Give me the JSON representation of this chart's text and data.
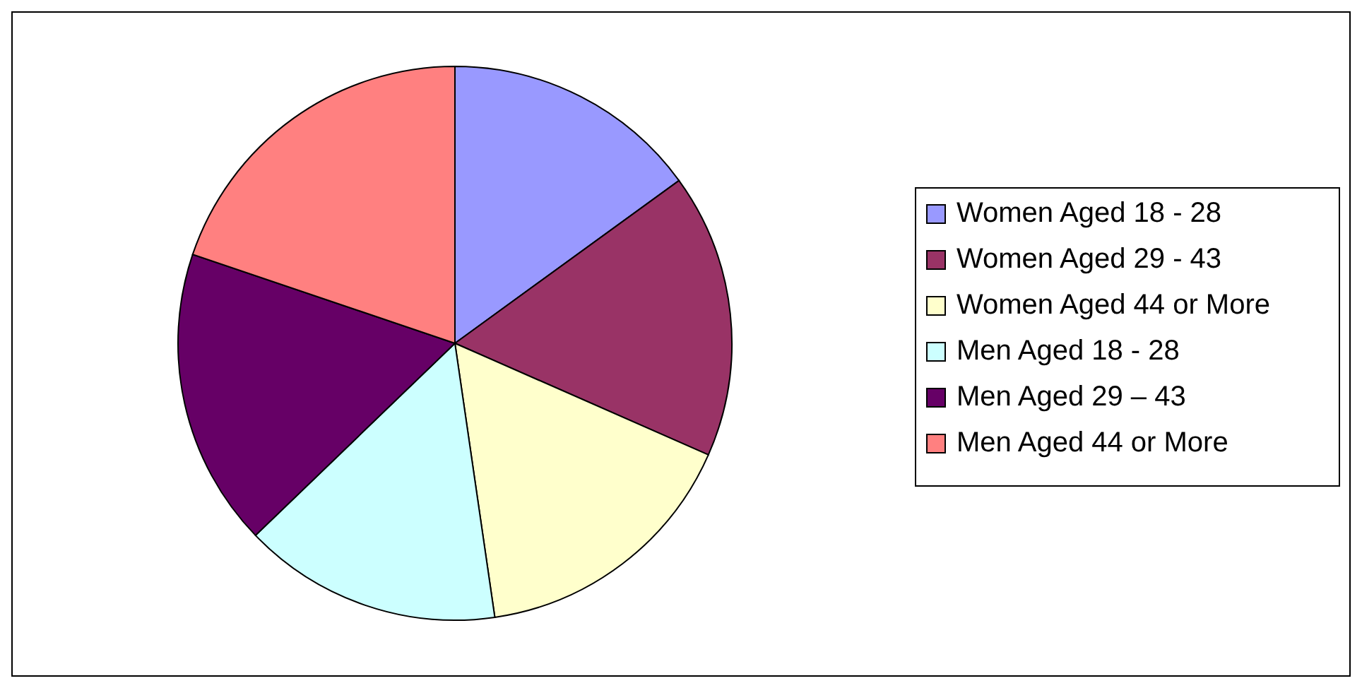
{
  "chart_data": {
    "type": "pie",
    "categories": [
      "Women Aged 18 - 28",
      "Women Aged 29 - 43",
      "Women Aged 44 or More",
      "Men Aged 18 - 28",
      "Men Aged 29 – 43",
      "Men Aged 44 or More"
    ],
    "values": [
      15,
      16.6,
      16.1,
      15.1,
      17.4,
      19.8
    ],
    "colors": [
      "#9999ff",
      "#993366",
      "#ffffcc",
      "#ccffff",
      "#660066",
      "#ff8080"
    ],
    "legend": "right"
  }
}
